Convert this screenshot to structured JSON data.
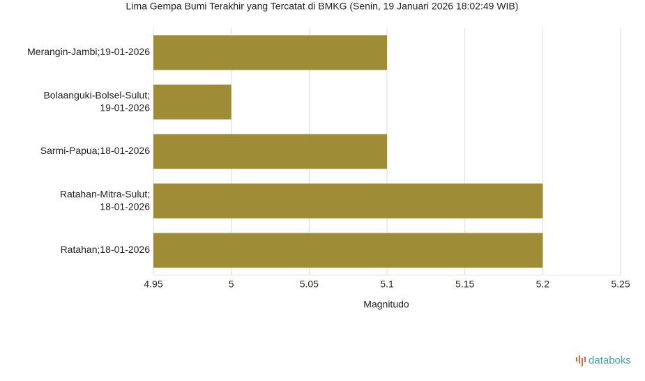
{
  "chart_data": {
    "type": "bar",
    "orientation": "horizontal",
    "title": "Lima Gempa Bumi Terakhir yang Tercatat di BMKG (Senin, 19 Januari 2026 18:02:49 WIB)",
    "categories": [
      "Merangin-Jambi;19-01-2026",
      "Bolaanguki-Bolsel-Sulut;\n19-01-2026",
      "Sarmi-Papua;18-01-2026",
      "Ratahan-Mitra-Sulut;\n18-01-2026",
      "Ratahan;18-01-2026"
    ],
    "values": [
      5.1,
      5,
      5.1,
      5.2,
      5.2
    ],
    "color": "#9e8c36",
    "xlabel": "Magnitudo",
    "xlim": [
      4.95,
      5.25
    ],
    "xticks": [
      4.95,
      5,
      5.05,
      5.1,
      5.15,
      5.2,
      5.25
    ],
    "grid": true
  },
  "brand": "databoks"
}
